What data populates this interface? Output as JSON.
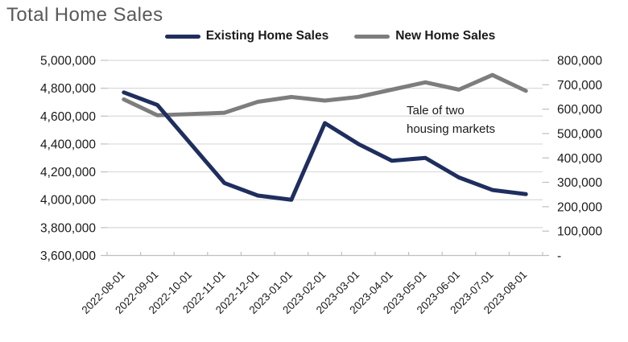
{
  "app": {
    "title": "Total Home Sales"
  },
  "annotation": {
    "line1": "Tale of two",
    "line2": "housing markets"
  },
  "colors": {
    "title_text": "#595959",
    "axis_text": "#1a1a1a",
    "gridline": "#d9d9d9",
    "axis_line": "#bfbfbf",
    "background": "#ffffff"
  },
  "chart_data": {
    "type": "line",
    "title": "Total Home Sales",
    "annotation": "Tale of two housing markets",
    "legend_position": "top",
    "grid": "horizontal",
    "categories": [
      "2022-08-01",
      "2022-09-01",
      "2022-10-01",
      "2022-11-01",
      "2022-12-01",
      "2023-01-01",
      "2023-02-01",
      "2023-03-01",
      "2023-04-01",
      "2023-05-01",
      "2023-06-01",
      "2023-07-01",
      "2023-08-01"
    ],
    "series": [
      {
        "name": "Existing Home Sales",
        "axis": "left",
        "color": "#1f2e5e",
        "values": [
          4770000,
          4680000,
          4400000,
          4120000,
          4030000,
          4000000,
          4550000,
          4400000,
          4280000,
          4300000,
          4160000,
          4070000,
          4040000
        ]
      },
      {
        "name": "New Home Sales",
        "axis": "right",
        "color": "#7d7d7d",
        "values": [
          640000,
          575000,
          580000,
          585000,
          630000,
          650000,
          635000,
          650000,
          680000,
          710000,
          680000,
          740000,
          675000
        ]
      }
    ],
    "left_axis": {
      "min": 3600000,
      "max": 5000000,
      "step": 200000,
      "ylim": [
        3600000,
        5000000
      ]
    },
    "right_axis": {
      "min": 0,
      "max": 800000,
      "step": 100000,
      "zero_label": "-",
      "ylim": [
        0,
        800000
      ]
    }
  }
}
